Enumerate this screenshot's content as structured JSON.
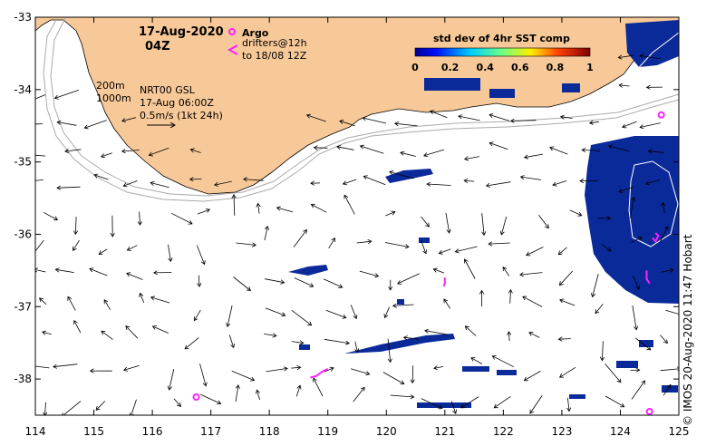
{
  "title": {
    "date": "17-Aug-2020",
    "time": "04Z"
  },
  "legend": {
    "argo_label": "Argo",
    "drifters_line1": "drifters@12h",
    "drifters_line2": "to 18/08 12Z"
  },
  "colorbar": {
    "title": "std dev of 4hr SST comp",
    "ticks": [
      "0",
      "0.2",
      "0.4",
      "0.6",
      "0.8",
      "1"
    ]
  },
  "info": {
    "depth1": "200m",
    "depth2": "1000m",
    "product": "NRT00 GSL",
    "valid_time": "17-Aug 06:00Z",
    "scale": "0.5m/s (1kt 24h)"
  },
  "credit": "© IMOS 20-Aug-2020 11:47 Hobart",
  "axes": {
    "lon_ticks": [
      "114",
      "115",
      "116",
      "117",
      "118",
      "119",
      "120",
      "121",
      "122",
      "123",
      "124",
      "125"
    ],
    "lat_ticks": [
      "-33",
      "-34",
      "-35",
      "-36",
      "-37",
      "-38"
    ],
    "lon_range": [
      114,
      125
    ],
    "lat_range": [
      -38.5,
      -33
    ]
  },
  "colors": {
    "land": "#f8c998",
    "sst_patch": "#0a2a9a",
    "argo": "#ff22ff",
    "contour": "#aaaaaa"
  },
  "argo_floats": [
    {
      "lon": 116.75,
      "lat": -38.25
    },
    {
      "lon": 124.7,
      "lat": -34.35
    },
    {
      "lon": 124.5,
      "lat": -38.45
    }
  ],
  "drifter_tracks": [
    {
      "points": [
        [
          118.7,
          -37.98
        ],
        [
          118.8,
          -37.96
        ],
        [
          118.9,
          -37.9
        ],
        [
          119.0,
          -37.86
        ]
      ]
    },
    {
      "points": [
        [
          121.0,
          -36.6
        ],
        [
          121.0,
          -36.68
        ],
        [
          120.98,
          -36.72
        ]
      ]
    },
    {
      "points": [
        [
          124.55,
          -36.05
        ],
        [
          124.6,
          -36.1
        ],
        [
          124.65,
          -36.02
        ],
        [
          124.6,
          -35.98
        ]
      ]
    },
    {
      "points": [
        [
          124.45,
          -36.5
        ],
        [
          124.45,
          -36.62
        ],
        [
          124.5,
          -36.68
        ]
      ]
    }
  ]
}
